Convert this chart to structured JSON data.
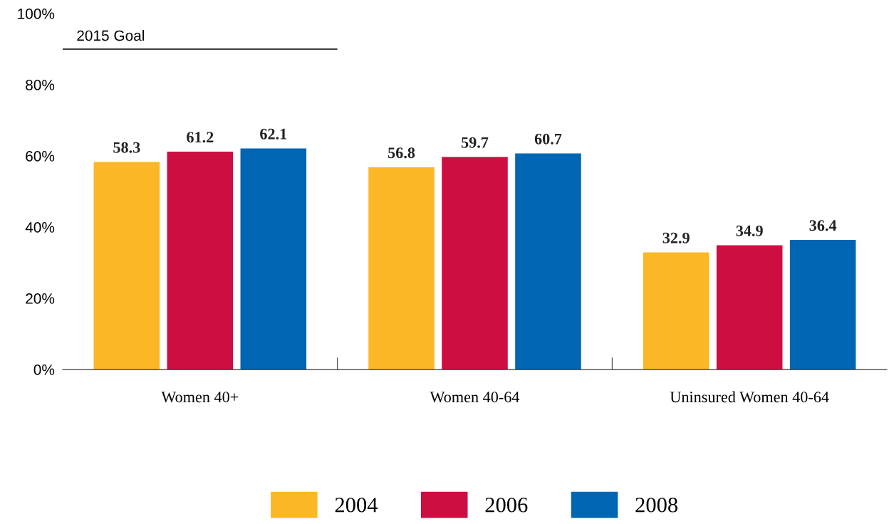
{
  "chart_data": {
    "type": "bar",
    "categories": [
      "Women 40+",
      "Women 40-64",
      "Uninsured Women 40-64"
    ],
    "series": [
      {
        "name": "2004",
        "color": "#fbb725",
        "values": [
          58.3,
          56.8,
          32.9
        ]
      },
      {
        "name": "2006",
        "color": "#cc0e40",
        "values": [
          61.2,
          59.7,
          34.9
        ]
      },
      {
        "name": "2008",
        "color": "#0066b3",
        "values": [
          62.1,
          60.7,
          36.4
        ]
      }
    ],
    "ylim": [
      0,
      100
    ],
    "yticks": [
      {
        "value": 0,
        "label": "0%"
      },
      {
        "value": 20,
        "label": "20%"
      },
      {
        "value": 40,
        "label": "40%"
      },
      {
        "value": 60,
        "label": "60%"
      },
      {
        "value": 80,
        "label": "80%"
      },
      {
        "value": 100,
        "label": "100%"
      }
    ],
    "ref_lines": [
      {
        "axis": "y",
        "value": 90,
        "label": "2015 Goal",
        "color": "#000000"
      }
    ],
    "data_labels": true,
    "grid": false,
    "legend": "bottom"
  }
}
